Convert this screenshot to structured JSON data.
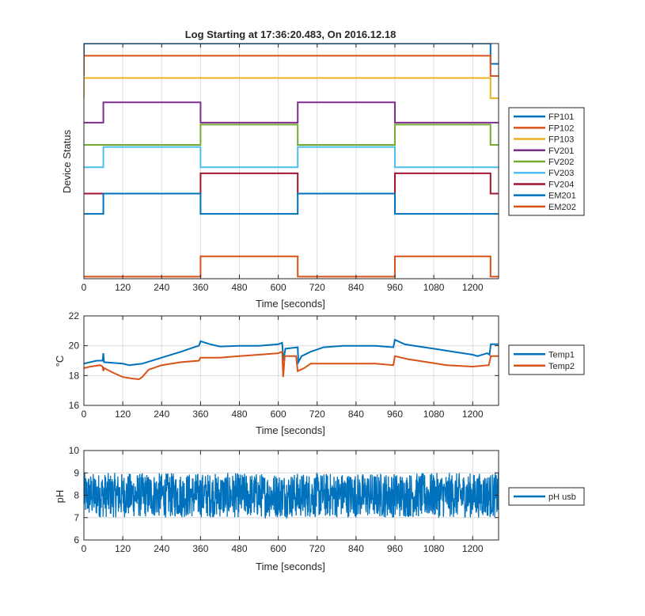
{
  "chart_data": [
    {
      "type": "line",
      "title": "Log Starting at 17:36:20.483, On 2016.12.18",
      "xlabel": "Time [seconds]",
      "ylabel": "Device Status",
      "xlim": [
        0,
        1280
      ],
      "xticks": [
        0,
        120,
        240,
        360,
        480,
        600,
        720,
        840,
        960,
        1080,
        1200
      ],
      "ylim": [
        -0.1,
        11.5
      ],
      "show_yticks": false,
      "grid": true,
      "legend_position": "right-outside",
      "series": [
        {
          "name": "FP101",
          "color": "#0072BD",
          "base": 10.5,
          "points": [
            [
              0,
              10.5
            ],
            [
              0,
              11.5
            ],
            [
              1255,
              11.5
            ],
            [
              1255,
              10.5
            ],
            [
              1280,
              10.5
            ]
          ]
        },
        {
          "name": "FP102",
          "color": "#D95319",
          "base": 9.9,
          "points": [
            [
              0,
              9.9
            ],
            [
              0,
              10.9
            ],
            [
              1255,
              10.9
            ],
            [
              1255,
              9.9
            ],
            [
              1280,
              9.9
            ]
          ]
        },
        {
          "name": "FP103",
          "color": "#EDB120",
          "base": 8.8,
          "points": [
            [
              0,
              8.8
            ],
            [
              0,
              9.8
            ],
            [
              1255,
              9.8
            ],
            [
              1255,
              8.8
            ],
            [
              1280,
              8.8
            ]
          ]
        },
        {
          "name": "FV201",
          "color": "#7E2F8E",
          "base": 7.6,
          "points": [
            [
              0,
              7.6
            ],
            [
              60,
              7.6
            ],
            [
              60,
              8.6
            ],
            [
              360,
              8.6
            ],
            [
              360,
              7.6
            ],
            [
              660,
              7.6
            ],
            [
              660,
              8.6
            ],
            [
              960,
              8.6
            ],
            [
              960,
              7.6
            ],
            [
              1280,
              7.6
            ]
          ]
        },
        {
          "name": "FV202",
          "color": "#77AC30",
          "base": 6.5,
          "points": [
            [
              0,
              6.5
            ],
            [
              360,
              6.5
            ],
            [
              360,
              7.5
            ],
            [
              660,
              7.5
            ],
            [
              660,
              6.5
            ],
            [
              960,
              6.5
            ],
            [
              960,
              7.5
            ],
            [
              1255,
              7.5
            ],
            [
              1255,
              6.5
            ],
            [
              1280,
              6.5
            ]
          ]
        },
        {
          "name": "FV203",
          "color": "#4DBEEE",
          "base": 5.4,
          "points": [
            [
              0,
              5.4
            ],
            [
              60,
              5.4
            ],
            [
              60,
              6.4
            ],
            [
              360,
              6.4
            ],
            [
              360,
              5.4
            ],
            [
              660,
              5.4
            ],
            [
              660,
              6.4
            ],
            [
              960,
              6.4
            ],
            [
              960,
              5.4
            ],
            [
              1280,
              5.4
            ]
          ]
        },
        {
          "name": "FV204",
          "color": "#A2142F",
          "base": 4.1,
          "points": [
            [
              0,
              4.1
            ],
            [
              360,
              4.1
            ],
            [
              360,
              5.1
            ],
            [
              660,
              5.1
            ],
            [
              660,
              4.1
            ],
            [
              960,
              4.1
            ],
            [
              960,
              5.1
            ],
            [
              1255,
              5.1
            ],
            [
              1255,
              4.1
            ],
            [
              1280,
              4.1
            ]
          ]
        },
        {
          "name": "EM201",
          "color": "#0072BD",
          "base": 3.1,
          "points": [
            [
              0,
              3.1
            ],
            [
              60,
              3.1
            ],
            [
              60,
              4.1
            ],
            [
              360,
              4.1
            ],
            [
              360,
              3.1
            ],
            [
              660,
              3.1
            ],
            [
              660,
              4.1
            ],
            [
              960,
              4.1
            ],
            [
              960,
              3.1
            ],
            [
              1280,
              3.1
            ]
          ]
        },
        {
          "name": "EM202",
          "color": "#D95319",
          "base": 0.0,
          "points": [
            [
              0,
              0.0
            ],
            [
              360,
              0.0
            ],
            [
              360,
              1.0
            ],
            [
              660,
              1.0
            ],
            [
              660,
              0.0
            ],
            [
              960,
              0.0
            ],
            [
              960,
              1.0
            ],
            [
              1255,
              1.0
            ],
            [
              1255,
              0.0
            ],
            [
              1280,
              0.0
            ]
          ]
        }
      ]
    },
    {
      "type": "line",
      "title": "",
      "xlabel": "Time [seconds]",
      "ylabel": "°C",
      "xlim": [
        0,
        1280
      ],
      "xticks": [
        0,
        120,
        240,
        360,
        480,
        600,
        720,
        840,
        960,
        1080,
        1200
      ],
      "ylim": [
        16,
        22
      ],
      "yticks": [
        16,
        18,
        20,
        22
      ],
      "grid": true,
      "legend_position": "right-outside",
      "series": [
        {
          "name": "Temp1",
          "color": "#0072BD",
          "points": [
            [
              0,
              18.8
            ],
            [
              20,
              18.9
            ],
            [
              40,
              19.0
            ],
            [
              58,
              19.0
            ],
            [
              60,
              19.5
            ],
            [
              62,
              18.9
            ],
            [
              120,
              18.8
            ],
            [
              140,
              18.7
            ],
            [
              180,
              18.8
            ],
            [
              240,
              19.2
            ],
            [
              300,
              19.6
            ],
            [
              340,
              19.9
            ],
            [
              355,
              20.0
            ],
            [
              360,
              20.3
            ],
            [
              390,
              20.1
            ],
            [
              420,
              19.95
            ],
            [
              480,
              20.0
            ],
            [
              540,
              20.0
            ],
            [
              600,
              20.1
            ],
            [
              612,
              20.2
            ],
            [
              616,
              19.0
            ],
            [
              622,
              19.8
            ],
            [
              660,
              19.9
            ],
            [
              662,
              18.9
            ],
            [
              672,
              19.3
            ],
            [
              700,
              19.6
            ],
            [
              740,
              19.9
            ],
            [
              800,
              20.0
            ],
            [
              900,
              20.0
            ],
            [
              955,
              19.9
            ],
            [
              960,
              20.4
            ],
            [
              990,
              20.1
            ],
            [
              1020,
              20.0
            ],
            [
              1080,
              19.8
            ],
            [
              1140,
              19.6
            ],
            [
              1200,
              19.4
            ],
            [
              1215,
              19.3
            ],
            [
              1245,
              19.5
            ],
            [
              1252,
              19.4
            ],
            [
              1256,
              20.1
            ],
            [
              1280,
              20.1
            ]
          ]
        },
        {
          "name": "Temp2",
          "color": "#D95319",
          "points": [
            [
              0,
              18.5
            ],
            [
              20,
              18.6
            ],
            [
              50,
              18.7
            ],
            [
              58,
              18.6
            ],
            [
              60,
              18.3
            ],
            [
              62,
              18.5
            ],
            [
              90,
              18.2
            ],
            [
              120,
              17.9
            ],
            [
              150,
              17.8
            ],
            [
              170,
              17.75
            ],
            [
              180,
              17.9
            ],
            [
              200,
              18.4
            ],
            [
              240,
              18.7
            ],
            [
              300,
              18.9
            ],
            [
              355,
              19.0
            ],
            [
              360,
              19.2
            ],
            [
              420,
              19.2
            ],
            [
              480,
              19.3
            ],
            [
              540,
              19.4
            ],
            [
              600,
              19.5
            ],
            [
              612,
              19.6
            ],
            [
              615,
              17.9
            ],
            [
              620,
              19.3
            ],
            [
              655,
              19.3
            ],
            [
              660,
              18.3
            ],
            [
              680,
              18.5
            ],
            [
              700,
              18.8
            ],
            [
              760,
              18.8
            ],
            [
              840,
              18.8
            ],
            [
              900,
              18.8
            ],
            [
              955,
              18.7
            ],
            [
              960,
              19.3
            ],
            [
              1000,
              19.1
            ],
            [
              1060,
              18.9
            ],
            [
              1120,
              18.7
            ],
            [
              1200,
              18.6
            ],
            [
              1250,
              18.7
            ],
            [
              1256,
              19.3
            ],
            [
              1280,
              19.3
            ]
          ]
        }
      ]
    },
    {
      "type": "line",
      "title": "",
      "xlabel": "Time [seconds]",
      "ylabel": "pH",
      "xlim": [
        0,
        1280
      ],
      "xticks": [
        0,
        120,
        240,
        360,
        480,
        600,
        720,
        840,
        960,
        1080,
        1200
      ],
      "ylim": [
        6,
        10
      ],
      "yticks": [
        6,
        7,
        8,
        9,
        10
      ],
      "grid": true,
      "legend_position": "right-outside",
      "series": [
        {
          "name": "pH usb",
          "color": "#0072BD",
          "mean": 8.0,
          "band": [
            7.0,
            9.0
          ],
          "noise": "dense"
        }
      ]
    }
  ]
}
